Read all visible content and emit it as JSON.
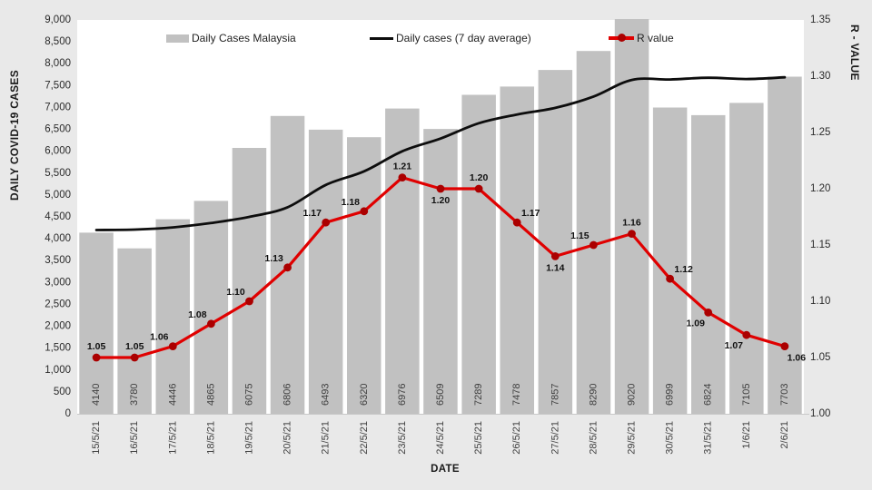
{
  "chart_data": {
    "type": "combo-bar-line",
    "x_axis": {
      "label": "DATE",
      "categories": [
        "15/5/21",
        "16/5/21",
        "17/5/21",
        "18/5/21",
        "19/5/21",
        "20/5/21",
        "21/5/21",
        "22/5/21",
        "23/5/21",
        "24/5/21",
        "25/5/21",
        "26/5/21",
        "27/5/21",
        "28/5/21",
        "29/5/21",
        "30/5/21",
        "31/5/21",
        "1/6/21",
        "2/6/21"
      ]
    },
    "y_left": {
      "label": "DAILY COVID-19 CASES",
      "min": 0,
      "max": 9000,
      "step": 500,
      "ticks": [
        "9,000",
        "8,500",
        "8,000",
        "7,500",
        "7,000",
        "6,500",
        "6,000",
        "5,500",
        "5,000",
        "4,500",
        "4,000",
        "3,500",
        "3,000",
        "2,500",
        "2,000",
        "1,500",
        "1,000",
        "500",
        "0"
      ]
    },
    "y_right": {
      "label": "R - VALUE",
      "min": 1.0,
      "max": 1.35,
      "step": 0.05,
      "ticks": [
        "1.35",
        "1.30",
        "1.25",
        "1.20",
        "1.15",
        "1.10",
        "1.05",
        "1.00"
      ]
    },
    "series": [
      {
        "name": "Daily Cases Malaysia",
        "type": "bar",
        "axis": "left",
        "values": [
          4140,
          3780,
          4446,
          4865,
          6075,
          6806,
          6493,
          6320,
          6976,
          6509,
          7289,
          7478,
          7857,
          8290,
          9020,
          6999,
          6824,
          7105,
          7703
        ],
        "labels": [
          "4140",
          "3780",
          "4446",
          "4865",
          "6075",
          "6806",
          "6493",
          "6320",
          "6976",
          "6509",
          "7289",
          "7478",
          "7857",
          "8290",
          "9020",
          "6999",
          "6824",
          "7105",
          "7703"
        ]
      },
      {
        "name": "Daily cases (7 day average)",
        "type": "line",
        "axis": "left",
        "smooth": true,
        "values": [
          4200,
          4210,
          4260,
          4360,
          4500,
          4720,
          5230,
          5540,
          6000,
          6290,
          6640,
          6840,
          6990,
          7250,
          7630,
          7640,
          7680,
          7650,
          7690
        ]
      },
      {
        "name": "R value",
        "type": "line",
        "axis": "right",
        "smooth": false,
        "values": [
          1.05,
          1.05,
          1.06,
          1.08,
          1.1,
          1.13,
          1.17,
          1.18,
          1.21,
          1.2,
          1.2,
          1.17,
          1.14,
          1.15,
          1.16,
          1.12,
          1.09,
          1.07,
          1.06
        ],
        "labels": [
          "1.05",
          "1.05",
          "1.06",
          "1.08",
          "1.10",
          "1.13",
          "1.17",
          "1.18",
          "1.21",
          "1.20",
          "1.20",
          "1.17",
          "1.14",
          "1.15",
          "1.16",
          "1.12",
          "1.09",
          "1.07",
          "1.06"
        ],
        "label_pos": [
          "a",
          "a",
          "al",
          "al",
          "al",
          "al",
          "al",
          "al",
          "a",
          "b",
          "a",
          "ar",
          "b",
          "al",
          "a",
          "ar",
          "bl",
          "bl",
          "br"
        ]
      }
    ],
    "legend": {
      "position": "top-inside"
    },
    "colors": {
      "page_bg": "#e9e9e9",
      "plot_bg": "#ffffff",
      "bar": "#c1c1c1",
      "avg_line": "#0d0d0d",
      "r_line": "#e00000",
      "r_marker": "#ab0000",
      "tick_text": "#2b2b2b",
      "bar_label_text": "#3f3f3f",
      "r_label_text": "#111111",
      "axis_line": "#c8c8c8"
    }
  }
}
